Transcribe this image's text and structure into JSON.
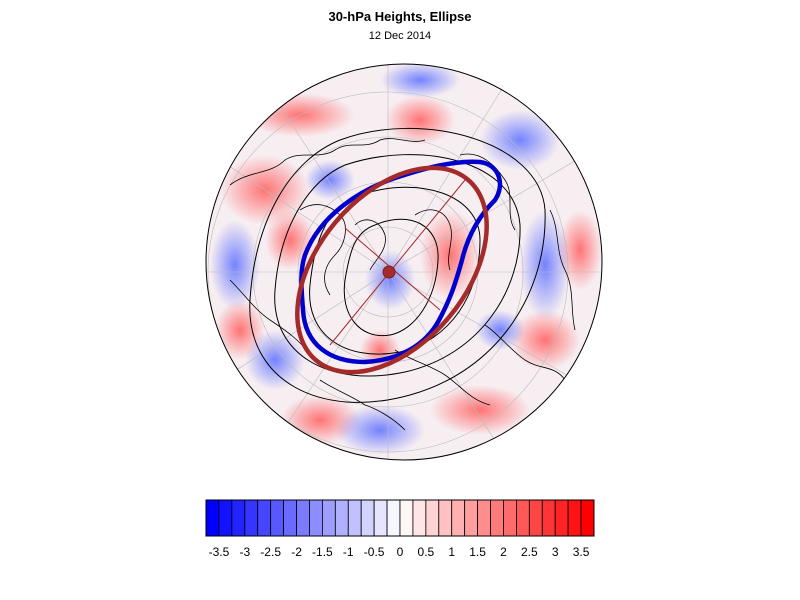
{
  "title": "30-hPa Heights, Ellipse",
  "subtitle": "12 Dec 2014",
  "colorbar": {
    "labels": [
      "-3.5",
      "-3",
      "-2.5",
      "-2",
      "-1.5",
      "-1",
      "-0.5",
      "0",
      "0.5",
      "1",
      "1.5",
      "2",
      "2.5",
      "3",
      "3.5"
    ],
    "min": -3.75,
    "max": 3.75,
    "step": 0.25,
    "negative_color": "#0000ff",
    "positive_color": "#ff0000"
  },
  "map": {
    "projection": "polar stereographic, North Pole",
    "colors": {
      "observed_vortex_edge": "#0000cc",
      "fitted_ellipse": "#a52a2a",
      "contours": "#000000",
      "coastlines": "#000000",
      "graticule": "#bbbbbb"
    }
  }
}
